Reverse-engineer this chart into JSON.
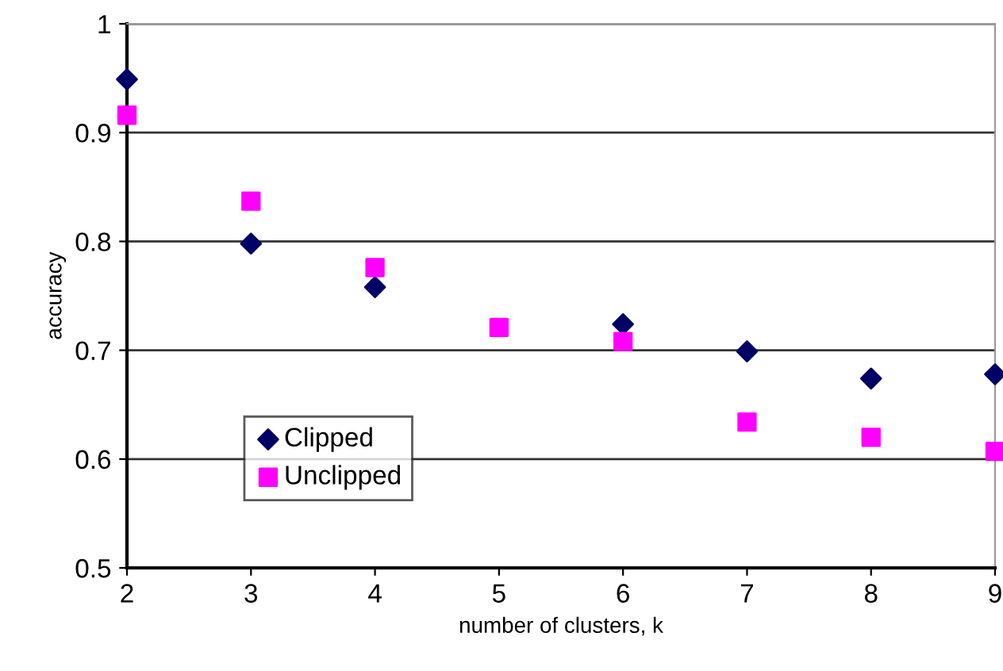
{
  "chart_data": {
    "type": "scatter",
    "xlabel": "number of clusters, k",
    "ylabel": "accuracy",
    "xlim": [
      2,
      9
    ],
    "xticks": [
      2,
      3,
      4,
      5,
      6,
      7,
      8,
      9
    ],
    "ylim": [
      0.5,
      1
    ],
    "yticks": [
      0.5,
      0.6,
      0.7,
      0.8,
      0.9,
      1
    ],
    "grid": "y",
    "legend": "bottom left",
    "series": [
      {
        "name": "Clipped",
        "color": "#000066",
        "marker": "diamond",
        "x": [
          2,
          3,
          4,
          6,
          7,
          8,
          9
        ],
        "values": [
          0.949,
          0.798,
          0.758,
          0.724,
          0.699,
          0.674,
          0.678
        ]
      },
      {
        "name": "Unclipped",
        "color": "#ff00ff",
        "marker": "square",
        "x": [
          2,
          3,
          4,
          5,
          6,
          7,
          8,
          9
        ],
        "values": [
          0.916,
          0.837,
          0.776,
          0.721,
          0.708,
          0.634,
          0.62,
          0.607
        ]
      }
    ]
  }
}
